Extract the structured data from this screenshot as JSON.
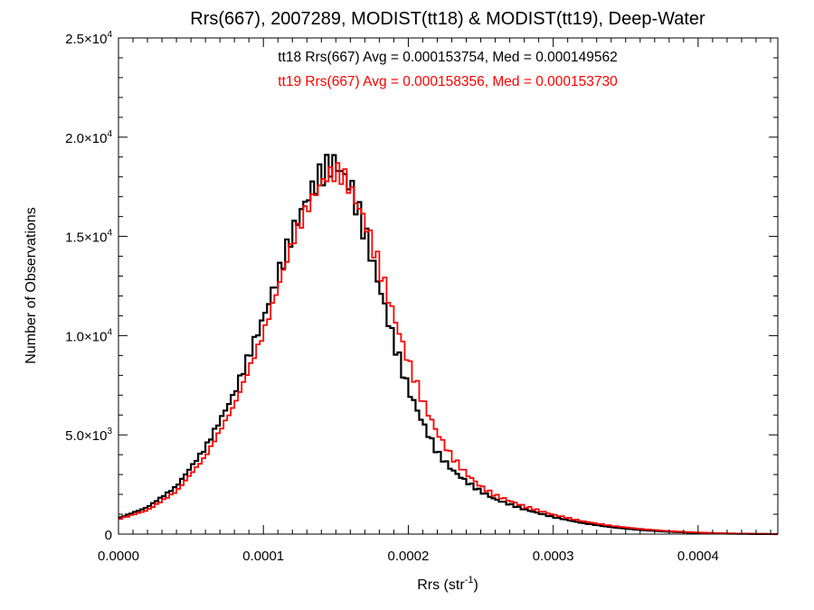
{
  "chart_data": {
    "type": "line",
    "style": "histogram-step",
    "title": "Rrs(667), 2007289, MODIST(tt18) & MODIST(tt19), Deep-Water",
    "xlabel_main": "Rrs (str",
    "xlabel_sup": "-1",
    "xlabel_close": ")",
    "ylabel": "Number of Observations",
    "xlim": [
      0.0,
      0.000455
    ],
    "ylim": [
      0,
      25000
    ],
    "x_ticks": [
      {
        "value": 0.0,
        "label": "0.0000"
      },
      {
        "value": 0.0001,
        "label": "0.0001"
      },
      {
        "value": 0.0002,
        "label": "0.0002"
      },
      {
        "value": 0.0003,
        "label": "0.0003"
      },
      {
        "value": 0.0004,
        "label": "0.0004"
      }
    ],
    "y_ticks": [
      {
        "value": 0,
        "mantissa": "0",
        "exp": ""
      },
      {
        "value": 5000,
        "mantissa": "5.0×10",
        "exp": "3"
      },
      {
        "value": 10000,
        "mantissa": "1.0×10",
        "exp": "4"
      },
      {
        "value": 15000,
        "mantissa": "1.5×10",
        "exp": "4"
      },
      {
        "value": 20000,
        "mantissa": "2.0×10",
        "exp": "4"
      },
      {
        "value": 25000,
        "mantissa": "2.5×10",
        "exp": "4"
      }
    ],
    "annotations": [
      {
        "text": "tt18 Rrs(667) Avg = 0.000153754, Med = 0.000149562",
        "color": "#000000"
      },
      {
        "text": "tt19 Rrs(667) Avg = 0.000158356, Med = 0.000153730",
        "color": "#ff0000"
      }
    ],
    "x": [
      0.0,
      2e-05,
      4e-05,
      6e-05,
      8e-05,
      0.0001,
      0.00011,
      0.00012,
      0.00013,
      0.00014,
      0.000145,
      0.00015,
      0.000155,
      0.00016,
      0.00017,
      0.00018,
      0.00019,
      0.0002,
      0.00021,
      0.00022,
      0.00023,
      0.00024,
      0.00025,
      0.00026,
      0.00028,
      0.0003,
      0.00032,
      0.00034,
      0.00036,
      0.00038,
      0.0004,
      0.00042,
      0.00044,
      0.000455
    ],
    "series": [
      {
        "name": "tt18",
        "color": "#000000",
        "values": [
          800,
          1350,
          2400,
          4350,
          7100,
          10900,
          13000,
          15200,
          16900,
          18150,
          18550,
          18700,
          18100,
          17600,
          15200,
          12500,
          9700,
          7300,
          5600,
          4100,
          3250,
          2650,
          2150,
          1750,
          1250,
          860,
          560,
          350,
          210,
          120,
          60,
          25,
          8,
          0
        ]
      },
      {
        "name": "tt19",
        "color": "#ff0000",
        "values": [
          750,
          1200,
          2150,
          3900,
          6500,
          10100,
          12400,
          14700,
          16400,
          17700,
          18100,
          18250,
          18100,
          17400,
          15800,
          13500,
          11000,
          8700,
          6700,
          5100,
          3900,
          3050,
          2400,
          1950,
          1400,
          980,
          650,
          420,
          260,
          150,
          80,
          35,
          12,
          0
        ]
      }
    ]
  }
}
